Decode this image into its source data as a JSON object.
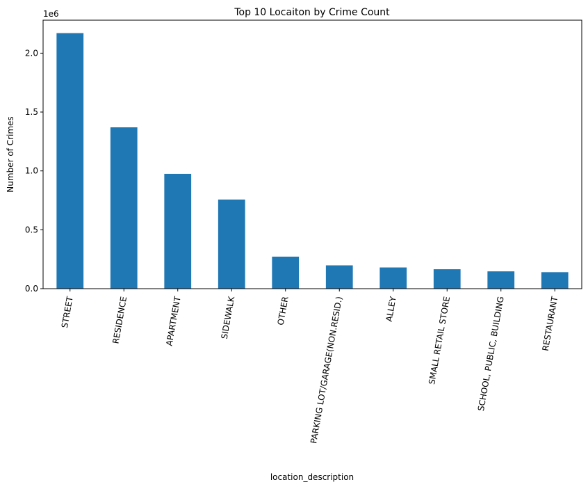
{
  "chart_data": {
    "type": "bar",
    "title": "Top 10 Locaiton by Crime Count",
    "xlabel": "location_description",
    "ylabel": "Number of Crimes",
    "y_offset_label": "1e6",
    "categories": [
      "STREET",
      "RESIDENCE",
      "APARTMENT",
      "SIDEWALK",
      "OTHER",
      "PARKING LOT/GARAGE(NON.RESID.)",
      "ALLEY",
      "SMALL RETAIL STORE",
      "SCHOOL, PUBLIC, BUILDING",
      "RESTAURANT"
    ],
    "values": [
      2170000,
      1370000,
      975000,
      757000,
      272000,
      198000,
      180000,
      165000,
      147000,
      140000
    ],
    "ylim": [
      0,
      2280000
    ],
    "yticks": [
      0,
      500000,
      1000000,
      1500000,
      2000000
    ],
    "ytick_labels": [
      "0.0",
      "0.5",
      "1.0",
      "1.5",
      "2.0"
    ],
    "bar_color": "#1f77b4",
    "grid": false,
    "legend": false
  }
}
